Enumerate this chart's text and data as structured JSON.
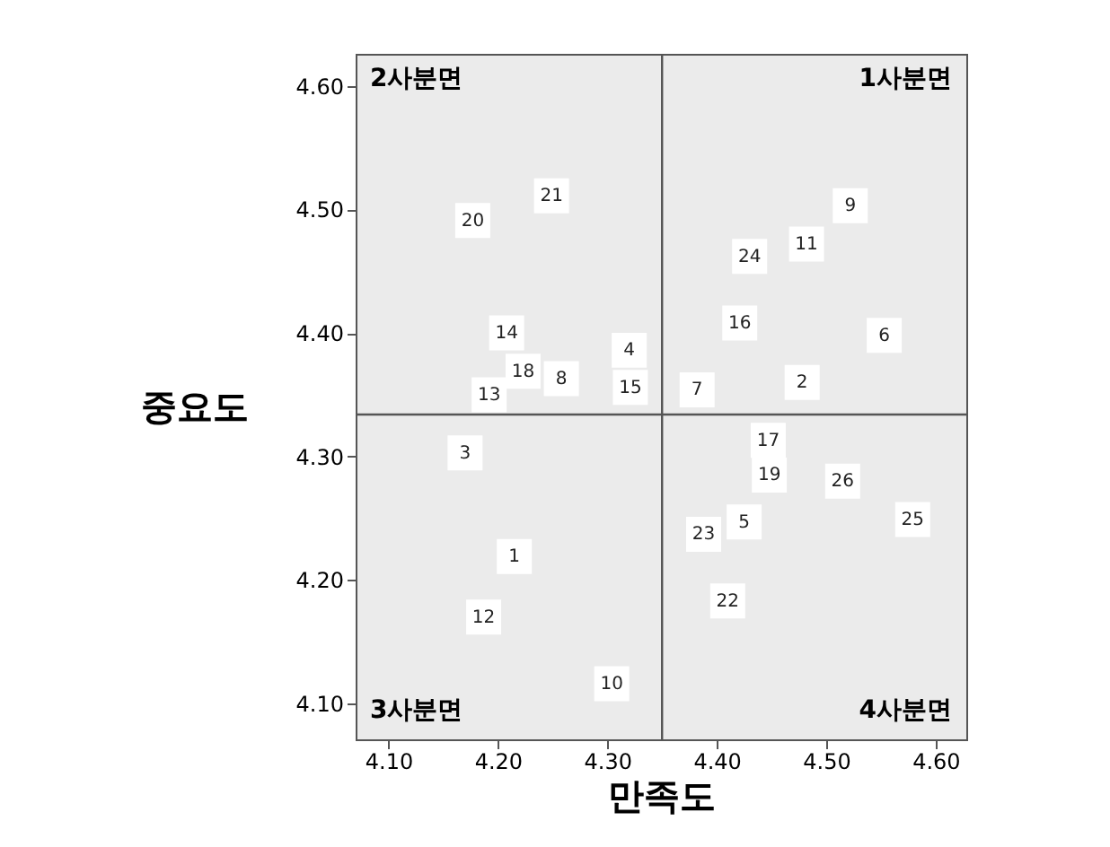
{
  "chart_data": {
    "type": "scatter",
    "xlabel": "만족도",
    "ylabel": "중요도",
    "series": [
      {
        "name": "1",
        "x": [
          4.215
        ],
        "values": [
          4.219
        ]
      },
      {
        "name": "2",
        "x": [
          4.478
        ],
        "values": [
          4.36
        ]
      },
      {
        "name": "3",
        "x": [
          4.17
        ],
        "values": [
          4.303
        ]
      },
      {
        "name": "4",
        "x": [
          4.32
        ],
        "values": [
          4.386
        ]
      },
      {
        "name": "5",
        "x": [
          4.425
        ],
        "values": [
          4.247
        ]
      },
      {
        "name": "6",
        "x": [
          4.553
        ],
        "values": [
          4.398
        ]
      },
      {
        "name": "7",
        "x": [
          4.382
        ],
        "values": [
          4.354
        ]
      },
      {
        "name": "8",
        "x": [
          4.258
        ],
        "values": [
          4.363
        ]
      },
      {
        "name": "9",
        "x": [
          4.522
        ],
        "values": [
          4.503
        ]
      },
      {
        "name": "10",
        "x": [
          4.304
        ],
        "values": [
          4.116
        ]
      },
      {
        "name": "11",
        "x": [
          4.482
        ],
        "values": [
          4.472
        ]
      },
      {
        "name": "12",
        "x": [
          4.187
        ],
        "values": [
          4.17
        ]
      },
      {
        "name": "13",
        "x": [
          4.192
        ],
        "values": [
          4.35
        ]
      },
      {
        "name": "14",
        "x": [
          4.208
        ],
        "values": [
          4.4
        ]
      },
      {
        "name": "15",
        "x": [
          4.321
        ],
        "values": [
          4.356
        ]
      },
      {
        "name": "16",
        "x": [
          4.421
        ],
        "values": [
          4.408
        ]
      },
      {
        "name": "17",
        "x": [
          4.447
        ],
        "values": [
          4.313
        ]
      },
      {
        "name": "18",
        "x": [
          4.223
        ],
        "values": [
          4.369
        ]
      },
      {
        "name": "19",
        "x": [
          4.448
        ],
        "values": [
          4.285
        ]
      },
      {
        "name": "20",
        "x": [
          4.177
        ],
        "values": [
          4.491
        ]
      },
      {
        "name": "21",
        "x": [
          4.249
        ],
        "values": [
          4.511
        ]
      },
      {
        "name": "22",
        "x": [
          4.41
        ],
        "values": [
          4.183
        ]
      },
      {
        "name": "23",
        "x": [
          4.388
        ],
        "values": [
          4.237
        ]
      },
      {
        "name": "24",
        "x": [
          4.43
        ],
        "values": [
          4.462
        ]
      },
      {
        "name": "25",
        "x": [
          4.579
        ],
        "values": [
          4.249
        ]
      },
      {
        "name": "26",
        "x": [
          4.515
        ],
        "values": [
          4.28
        ]
      }
    ],
    "color": "#ffffff",
    "marker": "square",
    "xlim": [
      4.07,
      4.628
    ],
    "ylim": [
      4.071,
      4.626
    ],
    "xticks": [
      {
        "value": 4.1,
        "label": "4.10"
      },
      {
        "value": 4.2,
        "label": "4.20"
      },
      {
        "value": 4.3,
        "label": "4.30"
      },
      {
        "value": 4.4,
        "label": "4.40"
      },
      {
        "value": 4.5,
        "label": "4.50"
      },
      {
        "value": 4.6,
        "label": "4.60"
      }
    ],
    "yticks": [
      {
        "value": 4.1,
        "label": "4.10"
      },
      {
        "value": 4.2,
        "label": "4.20"
      },
      {
        "value": 4.3,
        "label": "4.30"
      },
      {
        "value": 4.4,
        "label": "4.40"
      },
      {
        "value": 4.5,
        "label": "4.50"
      },
      {
        "value": 4.6,
        "label": "4.60"
      }
    ],
    "ref_lines": [
      {
        "axis": "x",
        "value": 4.35,
        "color": "#555555"
      },
      {
        "axis": "y",
        "value": 4.334,
        "color": "#555555"
      }
    ],
    "annotations": [
      "2사분면",
      "1사분면",
      "3사분면",
      "4사분면"
    ],
    "grid": false
  }
}
